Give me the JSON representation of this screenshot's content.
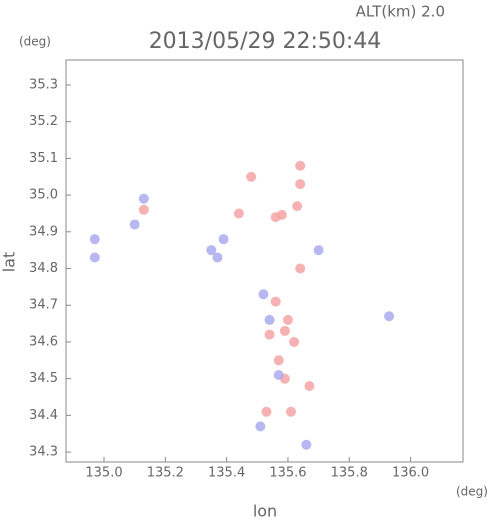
{
  "chart_data": {
    "type": "scatter",
    "title": "2013/05/29 22:50:44",
    "annotation": "ALT(km) 2.0",
    "xlabel": "lon",
    "ylabel": "lat",
    "x_unit": "(deg)",
    "y_unit": "(deg)",
    "xlim": [
      134.876,
      136.171
    ],
    "ylim": [
      34.273,
      35.368
    ],
    "xticks": [
      {
        "value": 135,
        "label": "135.0"
      },
      135.2,
      135.4,
      135.6,
      135.8,
      {
        "value": 136,
        "label": "136.0"
      }
    ],
    "yticks": [
      34.3,
      34.4,
      34.5,
      34.6,
      34.7,
      34.8,
      34.9,
      {
        "value": 35,
        "label": "35.0"
      },
      35.1,
      35.2,
      35.3
    ],
    "grid": false,
    "series": [
      {
        "color": "#f4a4a4",
        "x": [
          135.64,
          135.64,
          135.63,
          135.58,
          135.56,
          135.48,
          135.44,
          135.64,
          135.59,
          135.62,
          135.54,
          135.59,
          135.61,
          135.53,
          135.67,
          135.13,
          135.56,
          135.6,
          135.57
        ],
        "values": [
          35.08,
          35.03,
          34.97,
          34.946,
          34.94,
          35.05,
          34.95,
          34.8,
          34.63,
          34.6,
          34.62,
          34.5,
          34.41,
          34.41,
          34.48,
          34.96,
          34.71,
          34.66,
          34.55
        ]
      },
      {
        "color": "#aaaaee",
        "x": [
          134.97,
          134.97,
          135.1,
          135.13,
          135.35,
          135.39,
          135.37,
          135.54,
          135.57,
          135.51,
          135.93,
          135.66,
          135.7,
          135.52
        ],
        "values": [
          34.88,
          34.83,
          34.92,
          34.99,
          34.85,
          34.88,
          34.83,
          34.66,
          34.51,
          34.37,
          34.67,
          34.32,
          34.85,
          34.73
        ]
      }
    ]
  }
}
